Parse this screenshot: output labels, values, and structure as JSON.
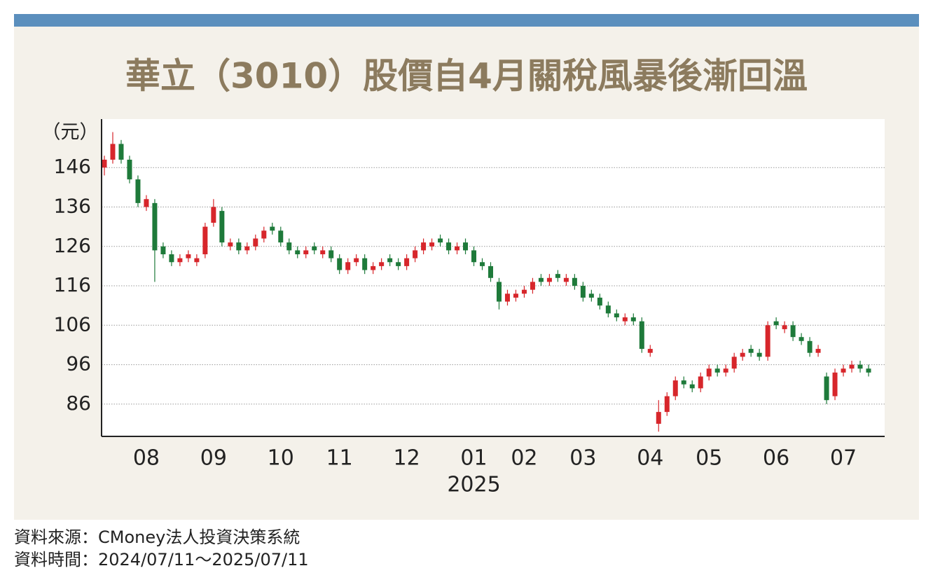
{
  "chart_data": {
    "type": "candlestick",
    "title": "華立（3010）股價自4月關稅風暴後漸回溫",
    "y_label": "（元）",
    "year_label": "2025",
    "notes": [
      "資料來源：CMoney法人投資決策系統",
      "資料時間：2024/07/11～2025/07/11"
    ],
    "up_color": "#d7262b",
    "down_color": "#1e7a3a",
    "grid": true,
    "ylim": [
      77.8,
      158.3
    ],
    "yticks": [
      86,
      96,
      106,
      116,
      126,
      136,
      146
    ],
    "categories": [
      null,
      null,
      null,
      null,
      null,
      "08",
      null,
      null,
      null,
      null,
      null,
      null,
      null,
      "09",
      null,
      null,
      null,
      null,
      null,
      null,
      null,
      "10",
      null,
      null,
      null,
      null,
      null,
      null,
      "11",
      null,
      null,
      null,
      null,
      null,
      null,
      null,
      "12",
      null,
      null,
      null,
      null,
      null,
      null,
      null,
      "01",
      null,
      null,
      null,
      null,
      null,
      "02",
      null,
      null,
      null,
      null,
      null,
      null,
      "03",
      null,
      null,
      null,
      null,
      null,
      null,
      null,
      "04",
      null,
      null,
      null,
      null,
      null,
      null,
      "05",
      null,
      null,
      null,
      null,
      null,
      null,
      null,
      "06",
      null,
      null,
      null,
      null,
      null,
      null,
      null,
      "07",
      null,
      null,
      null
    ],
    "open": [
      146,
      148,
      152,
      148,
      143,
      136,
      137,
      126,
      124,
      122,
      123,
      122,
      124,
      132,
      135,
      126,
      127,
      125,
      126,
      128,
      131,
      130,
      127,
      125,
      124,
      126,
      124,
      125,
      123,
      120,
      122,
      123,
      120,
      121,
      123,
      122,
      121,
      123,
      125,
      126,
      128,
      127,
      125,
      127,
      125,
      122,
      121,
      117,
      112,
      113,
      114,
      115,
      118,
      117,
      119,
      117,
      118,
      116,
      114,
      113,
      111,
      109,
      107,
      108,
      107,
      99,
      81,
      84,
      88,
      92,
      91,
      90,
      93,
      95,
      94,
      95,
      98,
      100,
      99,
      98,
      107,
      105,
      106,
      103,
      102,
      99,
      93,
      88,
      94,
      95,
      96,
      95
    ],
    "high": [
      149,
      155,
      153,
      149,
      144,
      139,
      138,
      127,
      125,
      124,
      125,
      124,
      132,
      138,
      136,
      128,
      128,
      127,
      129,
      131,
      132,
      131,
      128,
      126,
      126,
      127,
      126,
      126,
      124,
      123,
      124,
      124,
      122,
      123,
      124,
      123,
      124,
      126,
      128,
      128,
      129,
      128,
      127,
      128,
      126,
      123,
      122,
      118,
      115,
      115,
      116,
      118,
      119,
      119,
      120,
      119,
      119,
      117,
      115,
      114,
      112,
      110,
      109,
      109,
      108,
      101,
      87,
      89,
      93,
      93,
      92,
      94,
      96,
      96,
      96,
      99,
      100,
      101,
      100,
      107,
      108,
      107,
      107,
      104,
      103,
      101,
      94,
      95,
      96,
      97,
      97,
      96
    ],
    "low": [
      144,
      147,
      147,
      142,
      136,
      135,
      117,
      123,
      121,
      121,
      122,
      121,
      123,
      131,
      126,
      125,
      124,
      124,
      125,
      127,
      129,
      126,
      124,
      123,
      123,
      124,
      123,
      122,
      119,
      119,
      121,
      119,
      119,
      120,
      121,
      120,
      120,
      122,
      124,
      125,
      126,
      124,
      124,
      124,
      121,
      120,
      117,
      110,
      111,
      112,
      113,
      114,
      116,
      116,
      117,
      116,
      115,
      112,
      112,
      110,
      108,
      107,
      106,
      106,
      99,
      98,
      79,
      83,
      87,
      90,
      89,
      89,
      92,
      93,
      93,
      94,
      97,
      98,
      97,
      97,
      105,
      104,
      102,
      101,
      98,
      98,
      86,
      87,
      93,
      94,
      94,
      93
    ],
    "close": [
      148,
      152,
      148,
      143,
      137,
      138,
      125,
      124,
      122,
      123,
      124,
      123,
      131,
      136,
      127,
      127,
      125,
      126,
      128,
      130,
      130,
      127,
      125,
      124,
      125,
      125,
      125,
      123,
      120,
      122,
      123,
      120,
      121,
      122,
      122,
      121,
      123,
      125,
      127,
      127,
      127,
      125,
      126,
      125,
      122,
      121,
      118,
      112,
      114,
      114,
      115,
      117,
      117,
      118,
      118,
      118,
      116,
      113,
      113,
      111,
      109,
      108,
      108,
      107,
      100,
      100,
      84,
      88,
      92,
      91,
      90,
      93,
      95,
      94,
      95,
      98,
      99,
      99,
      98,
      106,
      106,
      106,
      103,
      102,
      99,
      100,
      87,
      94,
      95,
      96,
      95,
      94
    ]
  }
}
